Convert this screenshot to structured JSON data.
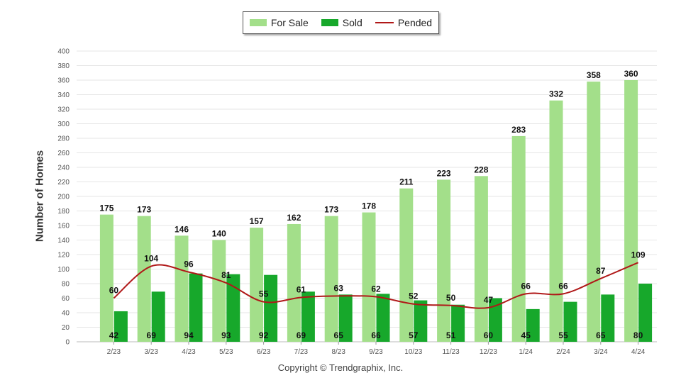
{
  "legend": {
    "for_sale": "For Sale",
    "sold": "Sold",
    "pended": "Pended"
  },
  "copyright": "Copyright © Trendgraphix, Inc.",
  "colors": {
    "for_sale": "#a3df8a",
    "sold": "#17a82b",
    "pended": "#b01818",
    "grid": "#e6e6e6",
    "axis_text": "#555555"
  },
  "chart_data": {
    "type": "bar",
    "title": "",
    "xlabel": "",
    "ylabel": "Number of Homes",
    "ylim": [
      0,
      400
    ],
    "ytick_step": 20,
    "grid": true,
    "legend_position": "top-center",
    "categories": [
      "2/23",
      "3/23",
      "4/23",
      "5/23",
      "6/23",
      "7/23",
      "8/23",
      "9/23",
      "10/23",
      "11/23",
      "12/23",
      "1/24",
      "2/24",
      "3/24",
      "4/24"
    ],
    "series": [
      {
        "name": "For Sale",
        "kind": "bar",
        "values": [
          175,
          173,
          146,
          140,
          157,
          162,
          173,
          178,
          211,
          223,
          228,
          283,
          332,
          358,
          360
        ]
      },
      {
        "name": "Sold",
        "kind": "bar",
        "values": [
          42,
          69,
          94,
          93,
          92,
          69,
          65,
          66,
          57,
          51,
          60,
          45,
          55,
          65,
          80
        ]
      },
      {
        "name": "Pended",
        "kind": "line",
        "values": [
          60,
          104,
          96,
          81,
          55,
          61,
          63,
          62,
          52,
          50,
          47,
          66,
          66,
          87,
          109
        ]
      }
    ]
  }
}
